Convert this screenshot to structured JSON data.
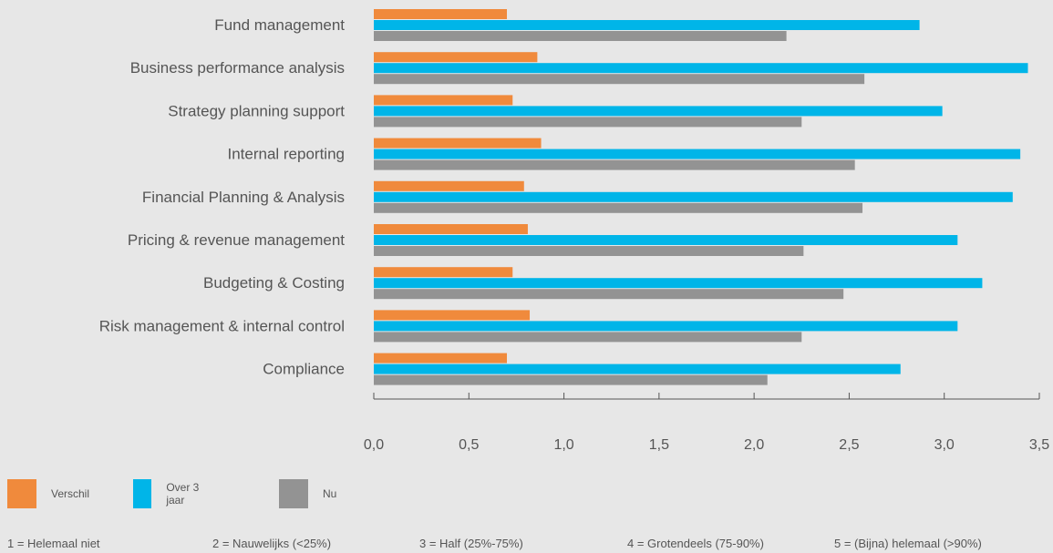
{
  "chart_data": {
    "type": "bar",
    "orientation": "horizontal",
    "categories": [
      "Fund management",
      "Business performance analysis",
      "Strategy planning support",
      "Internal reporting",
      "Financial Planning & Analysis",
      "Pricing & revenue management",
      "Budgeting & Costing",
      "Risk management & internal control",
      "Compliance"
    ],
    "series": [
      {
        "name": "Verschil",
        "color": "#f08a3c",
        "values": [
          0.7,
          0.86,
          0.73,
          0.88,
          0.79,
          0.81,
          0.73,
          0.82,
          0.7
        ]
      },
      {
        "name": "Over 3 jaar",
        "color": "#00b5e8",
        "values": [
          2.87,
          3.44,
          2.99,
          3.4,
          3.36,
          3.07,
          3.2,
          3.07,
          2.77
        ]
      },
      {
        "name": "Nu",
        "color": "#939393",
        "values": [
          2.17,
          2.58,
          2.25,
          2.53,
          2.57,
          2.26,
          2.47,
          2.25,
          2.07
        ]
      }
    ],
    "xticks": [
      "0,0",
      "0,5",
      "1,0",
      "1,5",
      "2,0",
      "2,5",
      "3,0",
      "3,5"
    ],
    "xlim": [
      0,
      3.5
    ],
    "grid": false,
    "legend_position": "bottom-left"
  },
  "scale_notes": [
    "1 = Helemaal niet",
    "2 = Nauwelijks (<25%)",
    "3 = Half (25%-75%)",
    "4 = Grotendeels (75-90%)",
    "5 = (Bijna) helemaal (>90%)"
  ]
}
